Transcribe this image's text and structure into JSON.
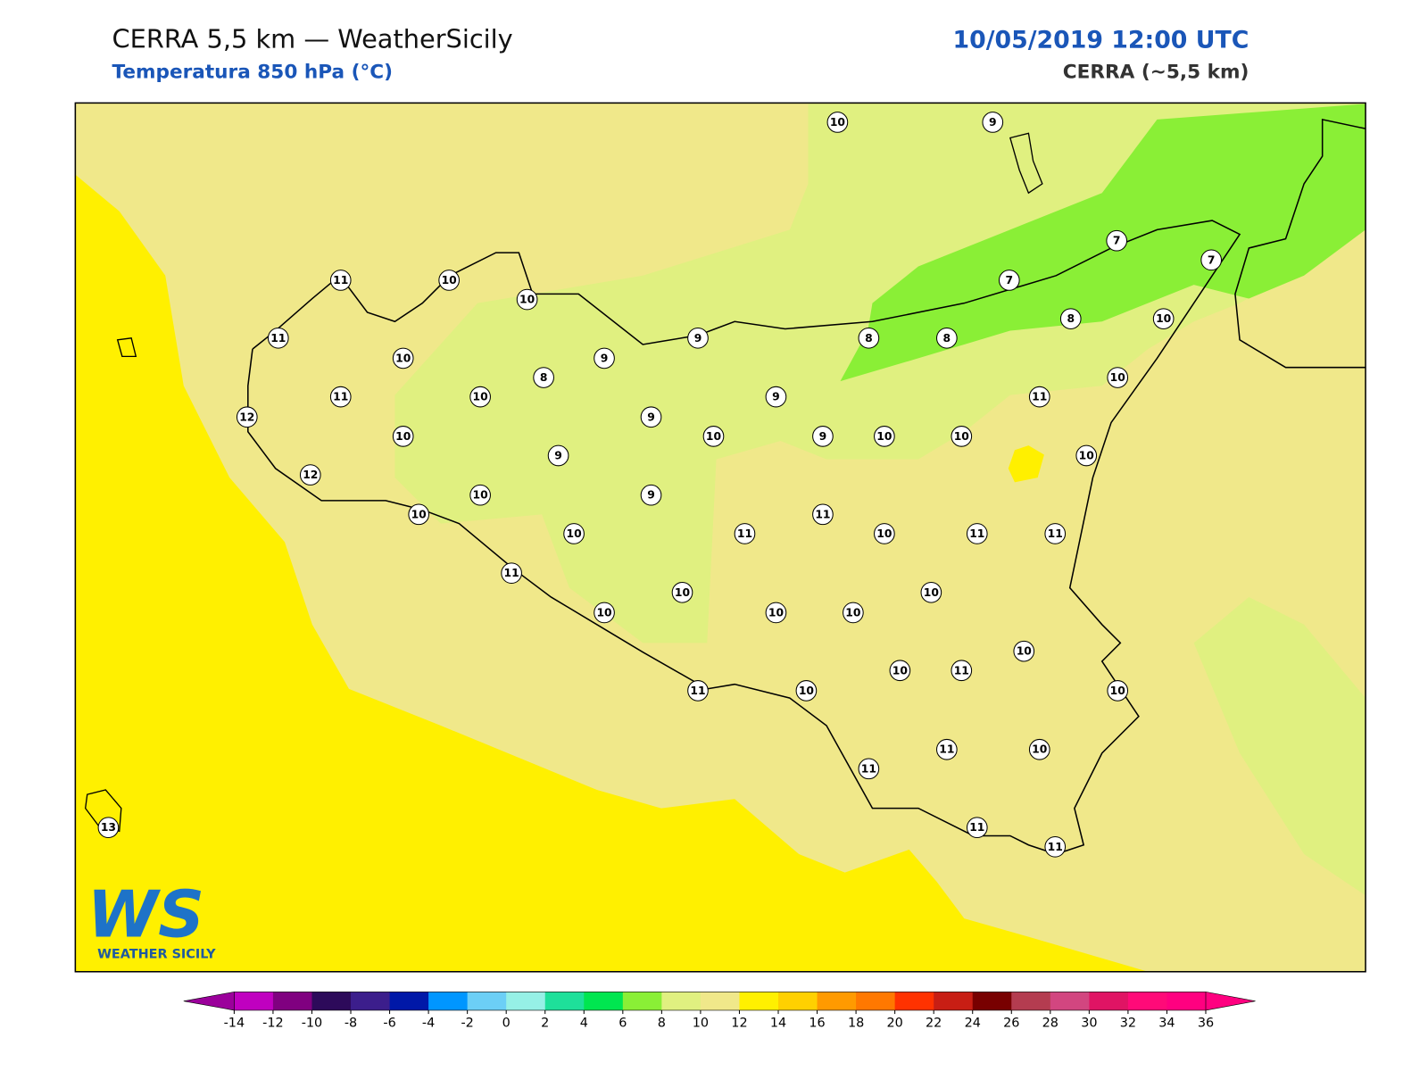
{
  "header": {
    "title": "CERRA 5,5 km — WeatherSicily",
    "subtitle": "Temperatura 850 hPa (°C)",
    "datetime": "10/05/2019 12:00 UTC",
    "model": "CERRA (~5,5 km)"
  },
  "logo": {
    "text": "WS",
    "subtext": "WEATHER SICILY"
  },
  "station_values": [
    10,
    9,
    7,
    7,
    7,
    11,
    10,
    10,
    8,
    10,
    11,
    8,
    8,
    9,
    10,
    9,
    8,
    10,
    11,
    10,
    9,
    11,
    12,
    9,
    10,
    10,
    9,
    10,
    10,
    9,
    10,
    12,
    10,
    9,
    10,
    11,
    10,
    11,
    10,
    11,
    11,
    11,
    10,
    10,
    10,
    10,
    10,
    10,
    10,
    11,
    10,
    10,
    11,
    11,
    11,
    10,
    11,
    11,
    13
  ],
  "colorbar": {
    "ticks": [
      -14,
      -12,
      -10,
      -8,
      -6,
      -4,
      -2,
      0,
      2,
      4,
      6,
      8,
      10,
      12,
      14,
      16,
      18,
      20,
      22,
      24,
      26,
      28,
      30,
      32,
      34,
      36
    ],
    "colors": [
      "#c000c0",
      "#800080",
      "#2d0a5a",
      "#3c1e8c",
      "#0018a8",
      "#0096ff",
      "#6ccff6",
      "#96f0e6",
      "#1ee09a",
      "#00e650",
      "#8aef36",
      "#e0f080",
      "#f0e88a",
      "#fff000",
      "#ffd000",
      "#ff9a00",
      "#ff7800",
      "#ff3200",
      "#c81e14",
      "#780000",
      "#b43c50",
      "#d24680",
      "#e01464",
      "#ff0a78",
      "#ff0080"
    ],
    "under": "#9b009b",
    "over": "#ff0080"
  }
}
